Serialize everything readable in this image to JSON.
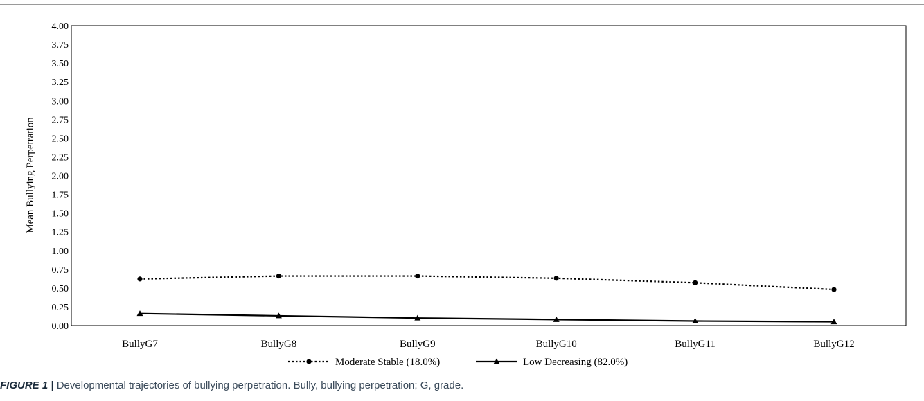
{
  "chart_data": {
    "type": "line",
    "categories": [
      "BullyG7",
      "BullyG8",
      "BullyG9",
      "BullyG10",
      "BullyG11",
      "BullyG12"
    ],
    "series": [
      {
        "name": "Moderate Stable (18.0%)",
        "values": [
          0.62,
          0.66,
          0.66,
          0.63,
          0.57,
          0.48
        ],
        "style": "dotted",
        "marker": "circle",
        "color": "#000000"
      },
      {
        "name": "Low Decreasing (82.0%)",
        "values": [
          0.16,
          0.13,
          0.1,
          0.08,
          0.06,
          0.05
        ],
        "style": "solid",
        "marker": "triangle",
        "color": "#000000"
      }
    ],
    "ylabel": "Mean Bullying Perpetration",
    "xlabel": "",
    "ylim": [
      0,
      4.0
    ],
    "ystep": 0.25,
    "ytick_labels": [
      "0.00",
      "0.25",
      "0.50",
      "0.75",
      "1.00",
      "1.25",
      "1.50",
      "1.75",
      "2.00",
      "2.25",
      "2.50",
      "2.75",
      "3.00",
      "3.25",
      "3.50",
      "3.75",
      "4.00"
    ],
    "grid": false,
    "legend": "bottom-center"
  },
  "caption": {
    "label": "FIGURE 1 |",
    "text": " Developmental trajectories of bullying perpetration. Bully, bullying perpetration; G, grade."
  }
}
